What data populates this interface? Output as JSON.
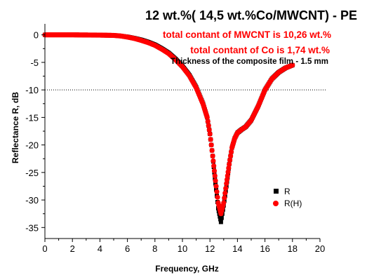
{
  "chart_data": {
    "type": "scatter",
    "title": "12 wt.%(  14,5 wt.%Co/MWCNT)  - PE",
    "annotations": [
      "total contant of MWCNT is 10,26 wt.%",
      "total contant of Co is 1,74 wt.%",
      "Thickness of the composite film - 1.5 mm"
    ],
    "xlabel": "Frequency, GHz",
    "ylabel": "Reflectance R, dB",
    "xlim": [
      0,
      20
    ],
    "ylim": [
      -37,
      2
    ],
    "xticks": [
      "0",
      "2",
      "4",
      "6",
      "8",
      "10",
      "12",
      "14",
      "16",
      "18",
      "20"
    ],
    "yticks": [
      "0",
      "-5",
      "-10",
      "-15",
      "-20",
      "-25",
      "-30",
      "-35"
    ],
    "reference_line": {
      "y": -10,
      "style": "dotted"
    },
    "legend_position": "lower-right",
    "series": [
      {
        "name": "R",
        "color": "#000000",
        "marker": "square",
        "x": [
          0,
          2,
          4,
          5,
          5.5,
          6,
          6.5,
          7,
          7.5,
          8,
          8.5,
          9,
          9.5,
          10,
          10.5,
          11,
          11.5,
          11.8,
          12,
          12.2,
          12.4,
          12.6,
          12.8,
          13,
          13.2,
          13.4,
          13.6,
          13.8,
          14,
          14.3,
          14.6,
          15,
          15.5,
          16,
          16.5,
          17,
          17.5,
          18
        ],
        "y": [
          0,
          0,
          -0.05,
          -0.1,
          -0.2,
          -0.35,
          -0.6,
          -0.9,
          -1.3,
          -1.8,
          -2.5,
          -3.3,
          -4.4,
          -5.7,
          -7.3,
          -9.5,
          -12.5,
          -15,
          -18,
          -22,
          -27,
          -31.5,
          -34,
          -31,
          -27.5,
          -23.5,
          -20.5,
          -18.8,
          -17.8,
          -17.2,
          -16.7,
          -15.5,
          -13,
          -10,
          -8,
          -6.8,
          -6,
          -5.5
        ]
      },
      {
        "name": "R(H)",
        "color": "#ff0000",
        "marker": "circle",
        "x": [
          0,
          2,
          4,
          5,
          5.5,
          6,
          6.5,
          7,
          7.5,
          8,
          8.5,
          9,
          9.5,
          10,
          10.5,
          11,
          11.5,
          11.8,
          12,
          12.2,
          12.4,
          12.6,
          12.8,
          13,
          13.2,
          13.4,
          13.6,
          13.8,
          14,
          14.3,
          14.6,
          15,
          15.5,
          16,
          16.5,
          17,
          17.5,
          18
        ],
        "y": [
          0,
          0,
          -0.05,
          -0.1,
          -0.2,
          -0.4,
          -0.65,
          -1,
          -1.4,
          -1.9,
          -2.6,
          -3.4,
          -4.5,
          -5.8,
          -7.4,
          -9.6,
          -12.6,
          -15,
          -18,
          -22,
          -26.5,
          -30.5,
          -32.5,
          -30.5,
          -27,
          -23.5,
          -20.5,
          -18.8,
          -17.8,
          -17.2,
          -16.7,
          -15.5,
          -13,
          -10,
          -8,
          -6.8,
          -6,
          -5.5
        ]
      }
    ]
  }
}
